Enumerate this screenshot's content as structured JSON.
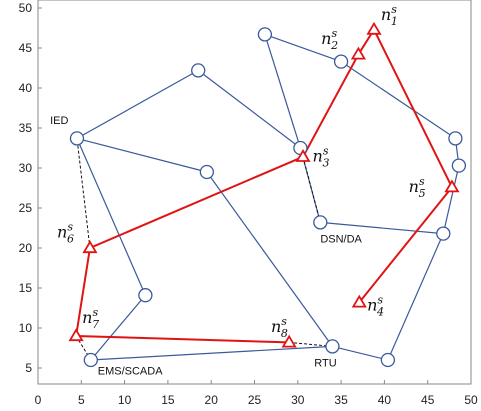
{
  "chart_data": {
    "type": "scatter",
    "title": "",
    "xlabel": "",
    "ylabel": "",
    "xlim": [
      0,
      50
    ],
    "ylim": [
      3,
      51
    ],
    "xticks": [
      "0",
      "5",
      "10",
      "15",
      "20",
      "25",
      "30",
      "35",
      "40",
      "45",
      "50"
    ],
    "yticks": [
      "5",
      "10",
      "15",
      "20",
      "25",
      "30",
      "35",
      "40",
      "45",
      "50"
    ],
    "grid": false,
    "colors": {
      "node": "#3b5a9a",
      "sensor": "#e01414",
      "dashed": "#111111",
      "frame": "#888888"
    },
    "nodes": [
      {
        "id": "ied",
        "x": 4.5,
        "y": 33.7
      },
      {
        "id": "top18",
        "x": 18.5,
        "y": 42.2
      },
      {
        "id": "top26",
        "x": 26.2,
        "y": 46.7
      },
      {
        "id": "mid20",
        "x": 19.5,
        "y": 29.5
      },
      {
        "id": "mid30",
        "x": 30.3,
        "y": 32.5
      },
      {
        "id": "n35_43",
        "x": 35.0,
        "y": 43.3
      },
      {
        "id": "dsn",
        "x": 32.6,
        "y": 23.2
      },
      {
        "id": "r48_34",
        "x": 48.2,
        "y": 33.7
      },
      {
        "id": "r48_30",
        "x": 48.6,
        "y": 30.3
      },
      {
        "id": "r47_22",
        "x": 46.8,
        "y": 21.8
      },
      {
        "id": "ems",
        "x": 6.1,
        "y": 6.0
      },
      {
        "id": "n12_14",
        "x": 12.4,
        "y": 14.1
      },
      {
        "id": "rtu",
        "x": 34.0,
        "y": 7.7
      },
      {
        "id": "n40_6",
        "x": 40.4,
        "y": 6.0
      }
    ],
    "edges": [
      [
        "ied",
        "top18"
      ],
      [
        "top18",
        "mid30"
      ],
      [
        "top26",
        "n35_43"
      ],
      [
        "top26",
        "mid30"
      ],
      [
        "n35_43",
        "r48_34"
      ],
      [
        "ied",
        "mid20"
      ],
      [
        "mid20",
        "rtu"
      ],
      [
        "ied",
        "n12_14"
      ],
      [
        "n12_14",
        "ems"
      ],
      [
        "ems",
        "rtu"
      ],
      [
        "rtu",
        "n40_6"
      ],
      [
        "n40_6",
        "r47_22"
      ],
      [
        "r47_22",
        "r48_30"
      ],
      [
        "r48_30",
        "r48_34"
      ],
      [
        "mid30",
        "dsn"
      ],
      [
        "dsn",
        "r47_22"
      ]
    ],
    "sensors": [
      {
        "id": "n1",
        "x": 38.8,
        "y": 47.3
      },
      {
        "id": "n2",
        "x": 37.0,
        "y": 44.2
      },
      {
        "id": "n3",
        "x": 30.6,
        "y": 31.4
      },
      {
        "id": "n4",
        "x": 37.1,
        "y": 13.2
      },
      {
        "id": "n5",
        "x": 47.8,
        "y": 27.6
      },
      {
        "id": "n6",
        "x": 6.0,
        "y": 20.0
      },
      {
        "id": "n7",
        "x": 4.4,
        "y": 9.0
      },
      {
        "id": "n8",
        "x": 29.0,
        "y": 8.2
      }
    ],
    "sensor_path": [
      "n8",
      "n7",
      "n6",
      "n3",
      "n2",
      "n1",
      "n5",
      "n4"
    ],
    "sensor_labels": [
      {
        "base": "n",
        "sup": "s",
        "sub": "1",
        "x": 39.6,
        "y": 48.5
      },
      {
        "base": "n",
        "sup": "s",
        "sub": "2",
        "x": 32.7,
        "y": 45.5
      },
      {
        "base": "n",
        "sup": "s",
        "sub": "3",
        "x": 31.7,
        "y": 30.8
      },
      {
        "base": "n",
        "sup": "s",
        "sub": "4",
        "x": 38.0,
        "y": 12.2
      },
      {
        "base": "n",
        "sup": "s",
        "sub": "5",
        "x": 42.8,
        "y": 27.0
      },
      {
        "base": "n",
        "sup": "s",
        "sub": "6",
        "x": 2.2,
        "y": 21.3
      },
      {
        "base": "n",
        "sup": "s",
        "sub": "7",
        "x": 5.1,
        "y": 10.6
      },
      {
        "base": "n",
        "sup": "s",
        "sub": "8",
        "x": 26.9,
        "y": 9.5
      }
    ],
    "dashed_links": [
      [
        "n6",
        "ied"
      ],
      [
        "n7",
        "ems"
      ],
      [
        "n8",
        "rtu"
      ],
      [
        "n3",
        "dsn"
      ]
    ],
    "annotations": [
      {
        "text": "IED",
        "x": 1.4,
        "y": 35.5
      },
      {
        "text": "DSN/DA",
        "x": 32.6,
        "y": 20.7
      },
      {
        "text": "EMS/SCADA",
        "x": 6.9,
        "y": 4.2
      },
      {
        "text": "RTU",
        "x": 31.9,
        "y": 5.2
      }
    ]
  }
}
